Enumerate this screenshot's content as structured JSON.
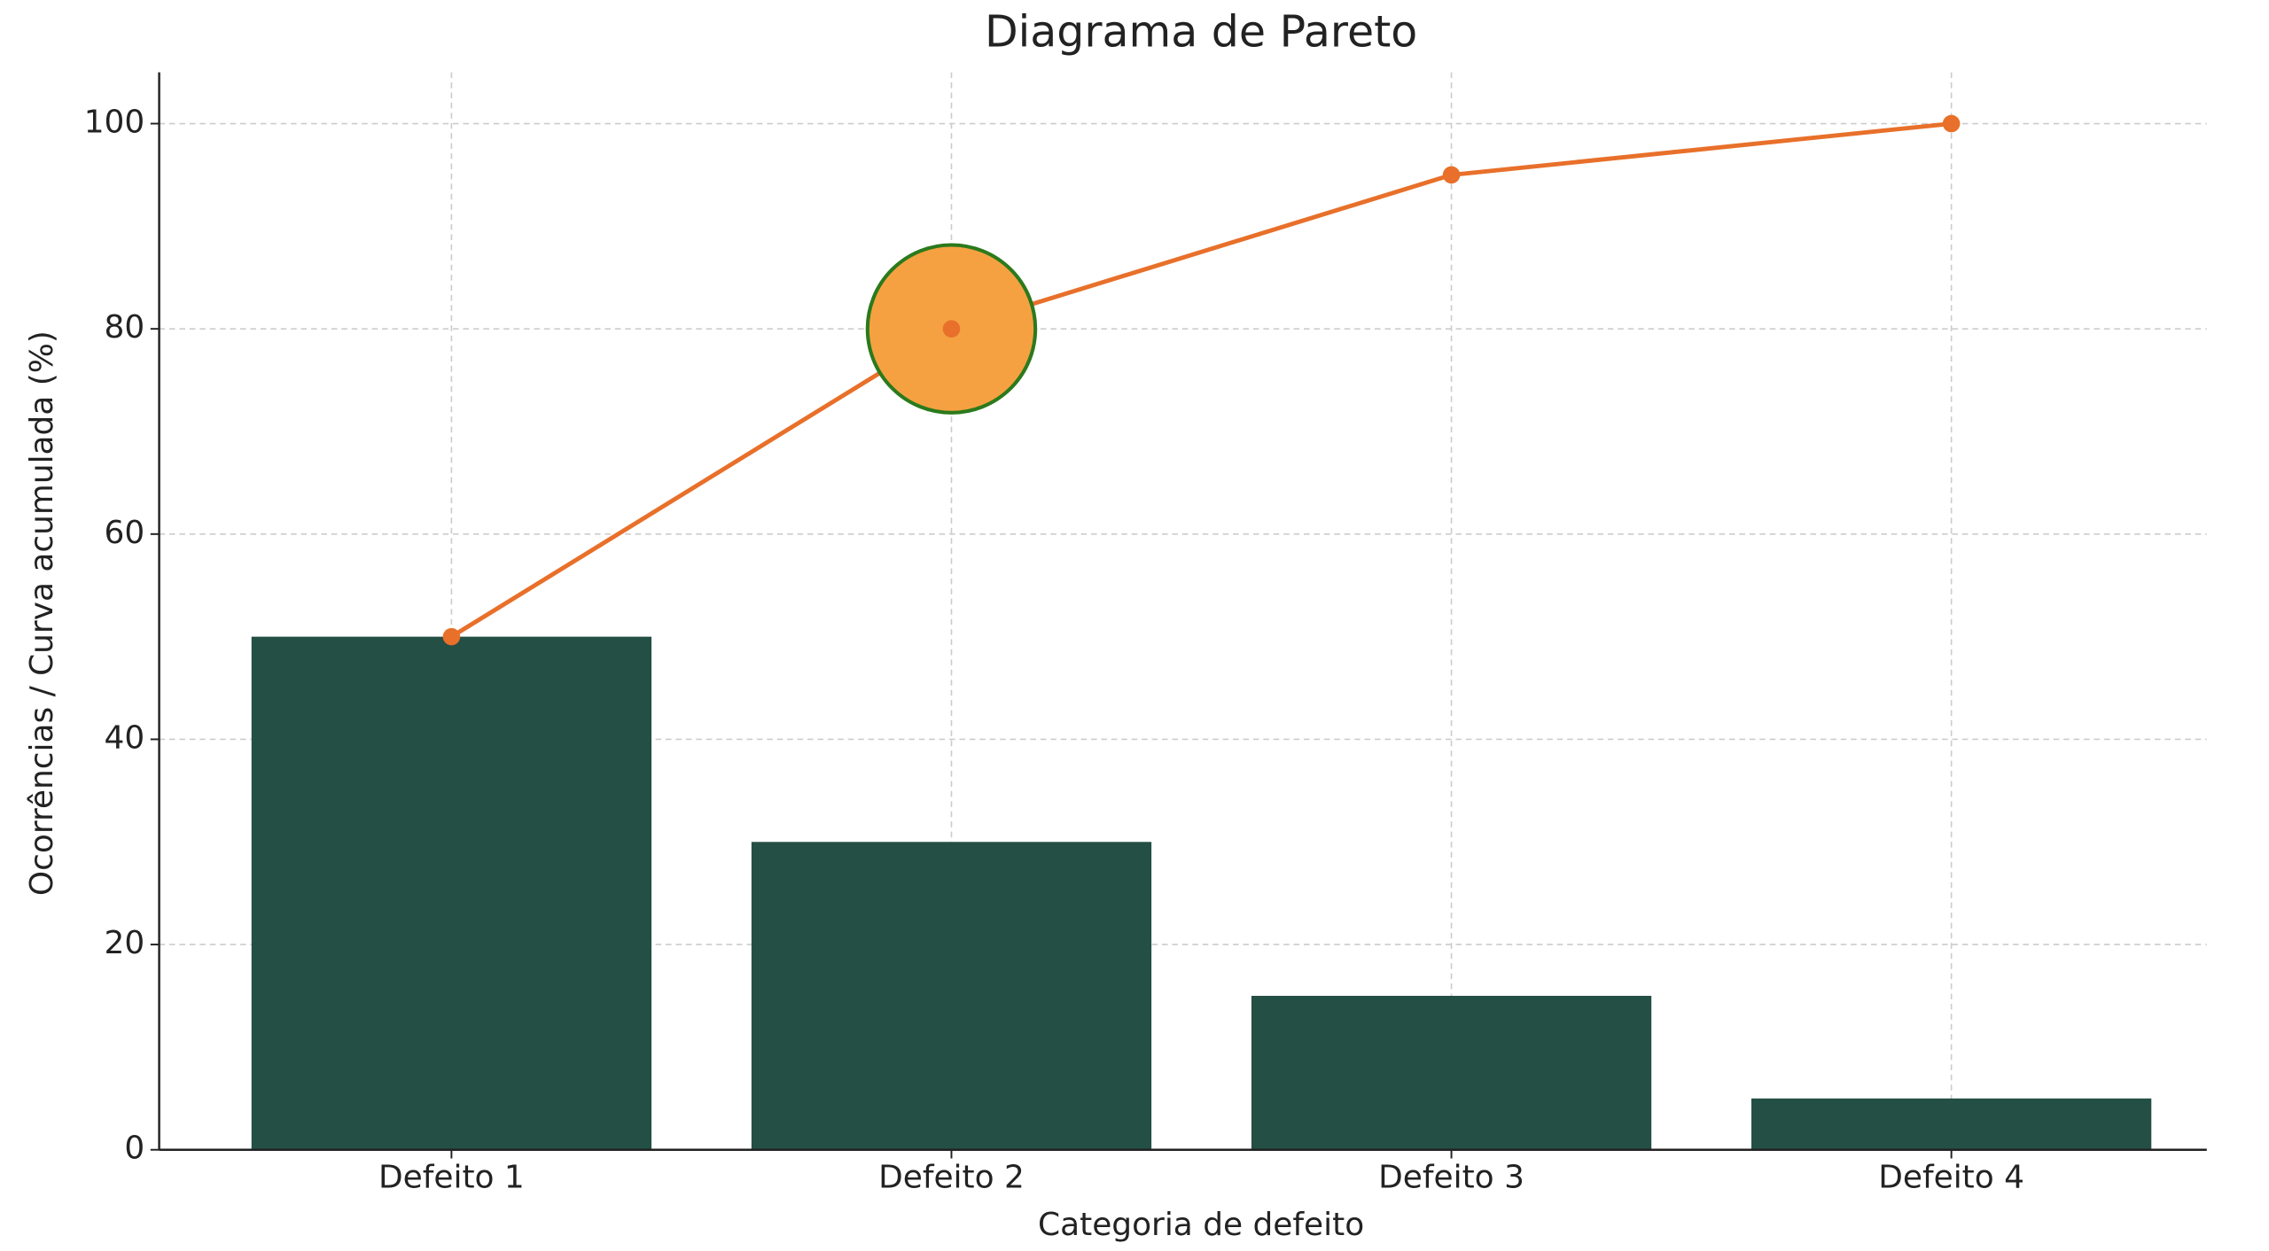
{
  "chart_data": {
    "type": "pareto",
    "title": "Diagrama de Pareto",
    "x_label": "Categoria de defeito",
    "y_label": "Ocorrências / Curva acumulada (%)",
    "categories": [
      "Defeito 1",
      "Defeito 2",
      "Defeito 3",
      "Defeito 4"
    ],
    "series": [
      {
        "type": "bar",
        "color": "#244f45",
        "values": [
          50,
          30,
          15,
          5
        ]
      },
      {
        "type": "line",
        "color": "#e8702a",
        "values": [
          50,
          80,
          95,
          100
        ]
      }
    ],
    "highlight": {
      "series": 1,
      "index": 1,
      "color": "#f5a142",
      "edgecolor": "#2b7a1c"
    },
    "ylim": [
      0,
      105
    ],
    "yticks": [
      0,
      20,
      40,
      60,
      80,
      100
    ],
    "grid": true
  }
}
